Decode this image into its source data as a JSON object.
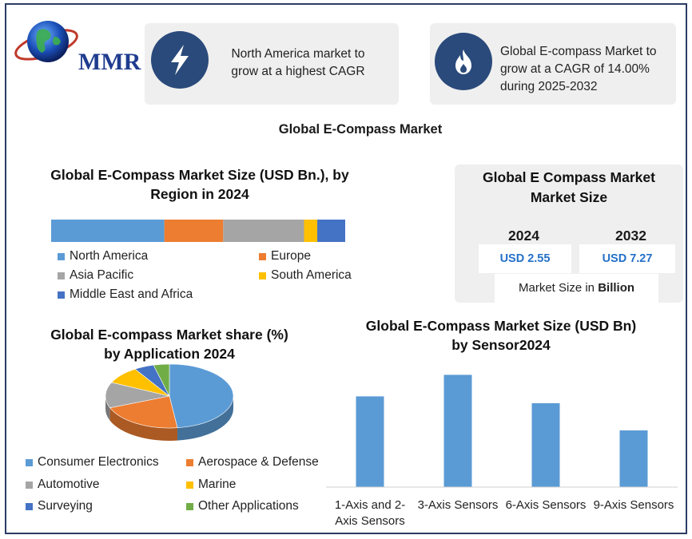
{
  "logo": {
    "text": "MMR"
  },
  "info_cards": [
    {
      "icon": "lightning-icon",
      "text_lines": [
        "North America market to",
        "grow at a highest CAGR"
      ]
    },
    {
      "icon": "flame-icon",
      "text_lines": [
        "Global E-compass Market to",
        "grow at a CAGR of 14.00%",
        "during 2025-2032"
      ]
    }
  ],
  "main_title": "Global E-Compass Market",
  "market_size_card": {
    "title_lines": [
      "Global E Compass Market",
      "Market Size"
    ],
    "years": [
      "2024",
      "2032"
    ],
    "values": [
      "USD 2.55",
      "USD 7.27"
    ],
    "note_prefix": "Market Size in ",
    "note_bold": "Billion"
  },
  "colors": {
    "blue": "#5b9bd5",
    "orange": "#ed7d31",
    "gray": "#a5a5a5",
    "yellow": "#ffc000",
    "dark_blue": "#4472c4",
    "green": "#70ad47",
    "accent_navy": "#2a4a7b"
  },
  "chart_data": [
    {
      "type": "bar",
      "orientation": "horizontal-stacked",
      "title": "Global E-Compass Market Size (USD Bn.), by Region in 2024",
      "title_lines": [
        "Global E-Compass Market Size (USD Bn.), by",
        "Region in 2024"
      ],
      "series": [
        {
          "name": "North America",
          "value": 38.5,
          "color": "#5b9bd5"
        },
        {
          "name": "Europe",
          "value": 20,
          "color": "#ed7d31"
        },
        {
          "name": "Asia Pacific",
          "value": 27.5,
          "color": "#a5a5a5"
        },
        {
          "name": "South America",
          "value": 4.5,
          "color": "#ffc000"
        },
        {
          "name": "Middle East and Africa",
          "value": 9.5,
          "color": "#4472c4"
        }
      ],
      "legend": "bottom"
    },
    {
      "type": "pie",
      "style": "3d",
      "title": "Global E-compass Market share (%) by Application 2024",
      "title_lines": [
        "Global E-compass Market share (%)",
        "by Application 2024"
      ],
      "slices": [
        {
          "name": "Consumer Electronics",
          "value": 48,
          "color": "#5b9bd5"
        },
        {
          "name": "Aerospace & Defense",
          "value": 21,
          "color": "#ed7d31"
        },
        {
          "name": "Automotive",
          "value": 13,
          "color": "#a5a5a5"
        },
        {
          "name": "Marine",
          "value": 9,
          "color": "#ffc000"
        },
        {
          "name": "Surveying",
          "value": 5,
          "color": "#4472c4"
        },
        {
          "name": "Other Applications",
          "value": 4,
          "color": "#70ad47"
        }
      ],
      "legend": "bottom"
    },
    {
      "type": "bar",
      "title": "Global  E-Compass  Market Size (USD Bn) by Sensor2024",
      "title_lines": [
        "Global  E-Compass  Market Size (USD Bn)",
        "by Sensor2024"
      ],
      "categories": [
        "1-Axis and 2-Axis Sensors",
        "3-Axis Sensors",
        "6-Axis Sensors",
        "9-Axis Sensors"
      ],
      "category_lines": [
        [
          "1-Axis and 2-",
          "Axis Sensors"
        ],
        [
          "3-Axis Sensors"
        ],
        [
          "6-Axis Sensors"
        ],
        [
          "9-Axis Sensors"
        ]
      ],
      "values": [
        0.8,
        0.99,
        0.74,
        0.5
      ],
      "ylim": [
        0,
        1.0
      ],
      "color": "#5b9bd5",
      "grid": false
    }
  ]
}
